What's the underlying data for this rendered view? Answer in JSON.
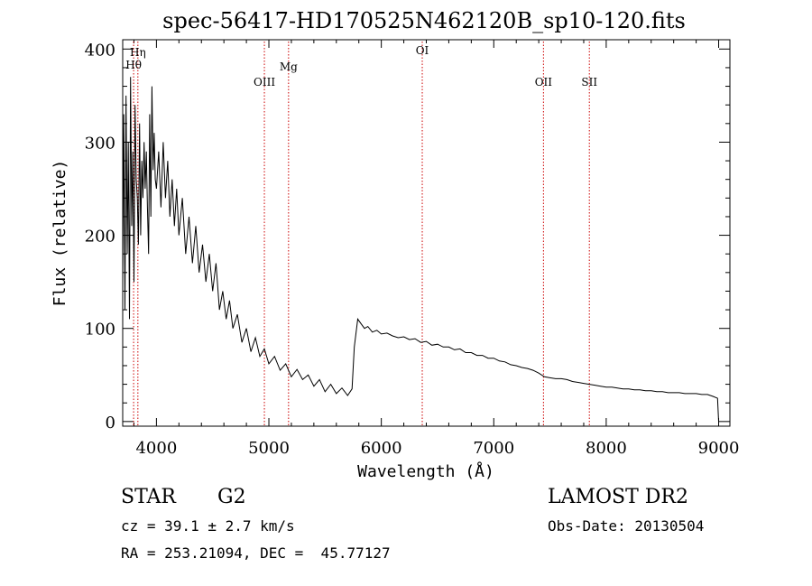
{
  "chart_data": {
    "type": "line",
    "title": "spec-56417-HD170525N462120B_sp10-120.fits",
    "xlabel": "Wavelength (Å)",
    "ylabel": "Flux (relative)",
    "xlim": [
      3700,
      9100
    ],
    "ylim": [
      -5,
      410
    ],
    "xticks": [
      4000,
      5000,
      6000,
      7000,
      8000,
      9000
    ],
    "yticks": [
      0,
      100,
      200,
      300,
      400
    ],
    "grid": false,
    "series": [
      {
        "points": [
          [
            3700,
            150
          ],
          [
            3710,
            330
          ],
          [
            3720,
            120
          ],
          [
            3730,
            350
          ],
          [
            3740,
            180
          ],
          [
            3750,
            300
          ],
          [
            3760,
            110
          ],
          [
            3770,
            370
          ],
          [
            3780,
            210
          ],
          [
            3790,
            290
          ],
          [
            3800,
            150
          ],
          [
            3810,
            340
          ],
          [
            3820,
            260
          ],
          [
            3830,
            240
          ],
          [
            3840,
            190
          ],
          [
            3850,
            320
          ],
          [
            3860,
            200
          ],
          [
            3870,
            280
          ],
          [
            3880,
            240
          ],
          [
            3890,
            300
          ],
          [
            3900,
            250
          ],
          [
            3910,
            290
          ],
          [
            3920,
            230
          ],
          [
            3930,
            180
          ],
          [
            3940,
            330
          ],
          [
            3950,
            220
          ],
          [
            3960,
            360
          ],
          [
            3970,
            270
          ],
          [
            3980,
            310
          ],
          [
            3990,
            260
          ],
          [
            4000,
            250
          ],
          [
            4020,
            290
          ],
          [
            4040,
            230
          ],
          [
            4060,
            300
          ],
          [
            4080,
            240
          ],
          [
            4100,
            280
          ],
          [
            4120,
            220
          ],
          [
            4140,
            260
          ],
          [
            4160,
            210
          ],
          [
            4180,
            250
          ],
          [
            4200,
            200
          ],
          [
            4230,
            240
          ],
          [
            4260,
            180
          ],
          [
            4290,
            220
          ],
          [
            4320,
            170
          ],
          [
            4350,
            210
          ],
          [
            4380,
            160
          ],
          [
            4410,
            190
          ],
          [
            4440,
            150
          ],
          [
            4470,
            180
          ],
          [
            4500,
            140
          ],
          [
            4530,
            170
          ],
          [
            4560,
            120
          ],
          [
            4590,
            140
          ],
          [
            4620,
            110
          ],
          [
            4650,
            130
          ],
          [
            4680,
            100
          ],
          [
            4720,
            115
          ],
          [
            4760,
            85
          ],
          [
            4800,
            100
          ],
          [
            4840,
            75
          ],
          [
            4880,
            90
          ],
          [
            4920,
            70
          ],
          [
            4960,
            78
          ],
          [
            5000,
            62
          ],
          [
            5050,
            70
          ],
          [
            5100,
            55
          ],
          [
            5150,
            62
          ],
          [
            5200,
            48
          ],
          [
            5250,
            56
          ],
          [
            5300,
            45
          ],
          [
            5350,
            50
          ],
          [
            5400,
            38
          ],
          [
            5450,
            45
          ],
          [
            5500,
            32
          ],
          [
            5550,
            40
          ],
          [
            5600,
            30
          ],
          [
            5650,
            36
          ],
          [
            5700,
            28
          ],
          [
            5740,
            35
          ],
          [
            5760,
            80
          ],
          [
            5790,
            110
          ],
          [
            5820,
            105
          ],
          [
            5850,
            100
          ],
          [
            5880,
            102
          ],
          [
            5920,
            96
          ],
          [
            5960,
            98
          ],
          [
            6000,
            94
          ],
          [
            6050,
            95
          ],
          [
            6100,
            92
          ],
          [
            6150,
            90
          ],
          [
            6200,
            91
          ],
          [
            6250,
            88
          ],
          [
            6300,
            89
          ],
          [
            6350,
            85
          ],
          [
            6400,
            86
          ],
          [
            6450,
            82
          ],
          [
            6500,
            83
          ],
          [
            6550,
            80
          ],
          [
            6600,
            80
          ],
          [
            6650,
            77
          ],
          [
            6700,
            78
          ],
          [
            6750,
            74
          ],
          [
            6800,
            74
          ],
          [
            6850,
            71
          ],
          [
            6900,
            71
          ],
          [
            6950,
            68
          ],
          [
            7000,
            68
          ],
          [
            7050,
            65
          ],
          [
            7100,
            64
          ],
          [
            7150,
            61
          ],
          [
            7200,
            60
          ],
          [
            7250,
            58
          ],
          [
            7300,
            57
          ],
          [
            7350,
            55
          ],
          [
            7400,
            52
          ],
          [
            7450,
            48
          ],
          [
            7500,
            47
          ],
          [
            7550,
            46
          ],
          [
            7600,
            46
          ],
          [
            7650,
            45
          ],
          [
            7700,
            43
          ],
          [
            7750,
            42
          ],
          [
            7800,
            41
          ],
          [
            7850,
            40
          ],
          [
            7900,
            39
          ],
          [
            7950,
            38
          ],
          [
            8000,
            37
          ],
          [
            8050,
            37
          ],
          [
            8100,
            36
          ],
          [
            8150,
            35
          ],
          [
            8200,
            35
          ],
          [
            8250,
            34
          ],
          [
            8300,
            34
          ],
          [
            8350,
            33
          ],
          [
            8400,
            33
          ],
          [
            8450,
            32
          ],
          [
            8500,
            32
          ],
          [
            8550,
            31
          ],
          [
            8600,
            31
          ],
          [
            8650,
            31
          ],
          [
            8700,
            30
          ],
          [
            8750,
            30
          ],
          [
            8800,
            30
          ],
          [
            8850,
            29
          ],
          [
            8900,
            29
          ],
          [
            8950,
            27
          ],
          [
            8990,
            25
          ],
          [
            9000,
            0
          ]
        ]
      }
    ],
    "lines": [
      {
        "label": "Hη",
        "x": 3835
      },
      {
        "label": "Hθ",
        "x": 3797
      },
      {
        "label": "OIII",
        "x": 4960
      },
      {
        "label": "Mg",
        "x": 5175
      },
      {
        "label": "OI",
        "x": 6364
      },
      {
        "label": "OII",
        "x": 7442
      },
      {
        "label": "SII",
        "x": 7850
      }
    ],
    "line_color": "#000000",
    "marker_color": "#cc0000"
  },
  "info": {
    "object_class": "STAR",
    "subclass": "G2",
    "catalog": "LAMOST DR2",
    "redshift_line": "cz = 39.1 ± 2.7 km/s",
    "obs_date_line": "Obs-Date: 20130504",
    "coord_line": "RA = 253.21094, DEC =  45.77127"
  }
}
